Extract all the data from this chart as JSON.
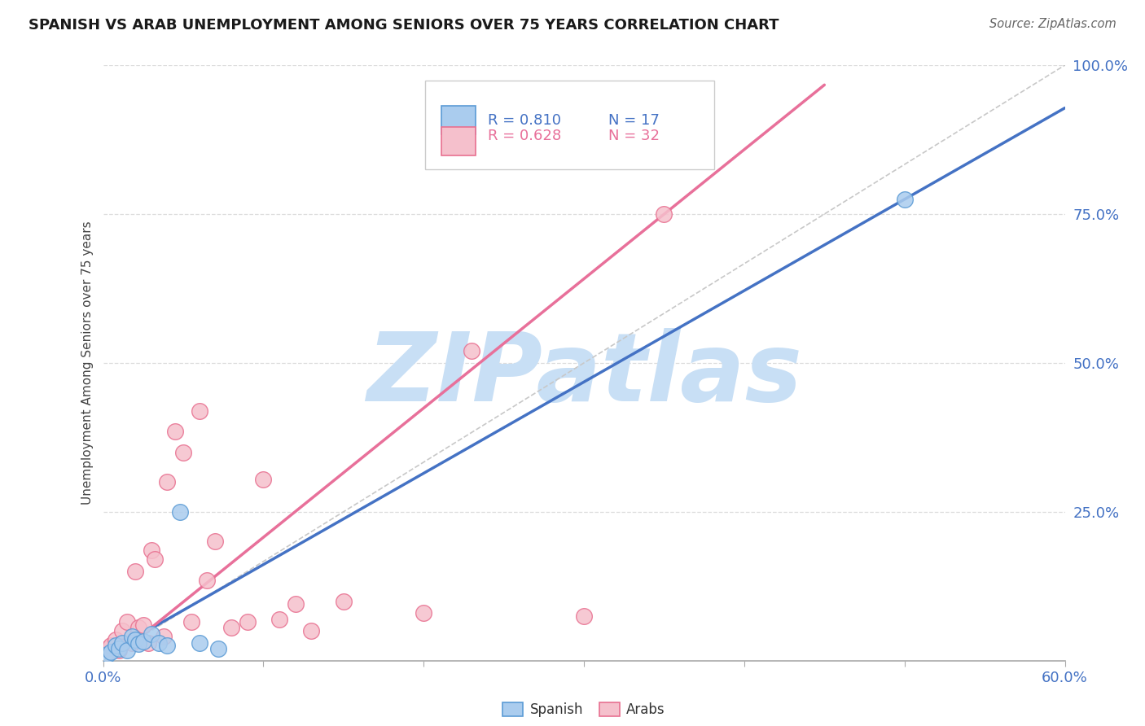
{
  "title": "SPANISH VS ARAB UNEMPLOYMENT AMONG SENIORS OVER 75 YEARS CORRELATION CHART",
  "source": "Source: ZipAtlas.com",
  "ylabel": "Unemployment Among Seniors over 75 years",
  "xlim": [
    0.0,
    0.6
  ],
  "ylim": [
    0.0,
    1.0
  ],
  "xticks": [
    0.0,
    0.1,
    0.2,
    0.3,
    0.4,
    0.5,
    0.6
  ],
  "xtick_labels": [
    "0.0%",
    "",
    "",
    "",
    "",
    "",
    "60.0%"
  ],
  "yticks": [
    0.0,
    0.25,
    0.5,
    0.75,
    1.0
  ],
  "ytick_labels": [
    "",
    "25.0%",
    "50.0%",
    "75.0%",
    "100.0%"
  ],
  "spanish_fill": "#AACCEE",
  "spanish_edge": "#5B9BD5",
  "arab_fill": "#F5C0CC",
  "arab_edge": "#E87090",
  "spanish_line_color": "#4472C4",
  "arab_line_color": "#E8709A",
  "diagonal_color": "#C8C8C8",
  "watermark_color": "#C8DFF5",
  "R_spanish": 0.81,
  "N_spanish": 17,
  "R_arab": 0.628,
  "N_arab": 32,
  "sp_line_x0": 0.0,
  "sp_line_y0": 0.008,
  "sp_line_x1": 0.5,
  "sp_line_y1": 0.775,
  "ar_line_x0": 0.0,
  "ar_line_y0": -0.01,
  "ar_line_x1": 0.35,
  "ar_line_y1": 0.75,
  "spanish_x": [
    0.003,
    0.005,
    0.008,
    0.01,
    0.012,
    0.015,
    0.018,
    0.02,
    0.022,
    0.025,
    0.03,
    0.035,
    0.04,
    0.048,
    0.06,
    0.072,
    0.5
  ],
  "spanish_y": [
    0.01,
    0.015,
    0.025,
    0.02,
    0.03,
    0.018,
    0.04,
    0.035,
    0.028,
    0.032,
    0.045,
    0.03,
    0.025,
    0.25,
    0.03,
    0.02,
    0.775
  ],
  "arab_x": [
    0.003,
    0.005,
    0.008,
    0.01,
    0.012,
    0.015,
    0.018,
    0.02,
    0.022,
    0.025,
    0.028,
    0.03,
    0.032,
    0.038,
    0.04,
    0.045,
    0.05,
    0.055,
    0.06,
    0.065,
    0.07,
    0.08,
    0.09,
    0.1,
    0.11,
    0.12,
    0.13,
    0.15,
    0.2,
    0.23,
    0.3,
    0.35
  ],
  "arab_y": [
    0.02,
    0.025,
    0.035,
    0.018,
    0.05,
    0.065,
    0.03,
    0.15,
    0.055,
    0.06,
    0.03,
    0.185,
    0.17,
    0.04,
    0.3,
    0.385,
    0.35,
    0.065,
    0.42,
    0.135,
    0.2,
    0.055,
    0.065,
    0.305,
    0.07,
    0.095,
    0.05,
    0.1,
    0.08,
    0.52,
    0.075,
    0.75
  ]
}
